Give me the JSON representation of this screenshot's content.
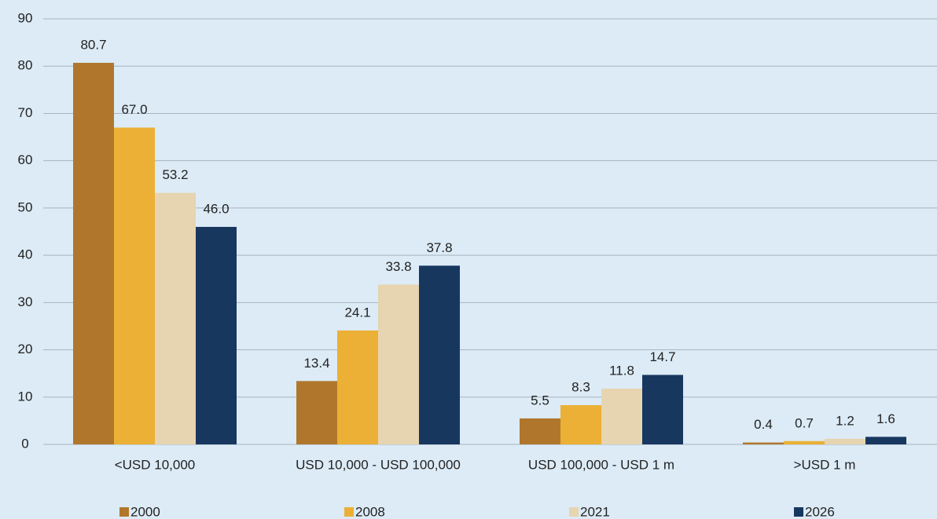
{
  "chart_data": {
    "type": "bar",
    "categories": [
      "<USD 10,000",
      "USD 10,000 - USD 100,000",
      "USD 100,000 - USD 1 m",
      ">USD 1 m"
    ],
    "series": [
      {
        "name": "2000",
        "color": "#b0772c",
        "values": [
          80.7,
          13.4,
          5.5,
          0.4
        ],
        "value_labels": [
          "80.7",
          "13.4",
          "5.5",
          "0.4"
        ]
      },
      {
        "name": "2008",
        "color": "#ebb035",
        "values": [
          67.0,
          24.1,
          8.3,
          0.7
        ],
        "value_labels": [
          "67.0",
          "24.1",
          "8.3",
          "0.7"
        ]
      },
      {
        "name": "2021",
        "color": "#e7d4b0",
        "values": [
          53.2,
          33.8,
          11.8,
          1.2
        ],
        "value_labels": [
          "53.2",
          "33.8",
          "11.8",
          "1.2"
        ]
      },
      {
        "name": "2026",
        "color": "#17375f",
        "values": [
          46.0,
          37.8,
          14.7,
          1.6
        ],
        "value_labels": [
          "46.0",
          "37.8",
          "14.7",
          "1.6"
        ]
      }
    ],
    "ylim": [
      0,
      90
    ],
    "yticks": [
      0,
      10,
      20,
      30,
      40,
      50,
      60,
      70,
      80,
      90
    ],
    "grid": true,
    "legend": "bottom"
  }
}
